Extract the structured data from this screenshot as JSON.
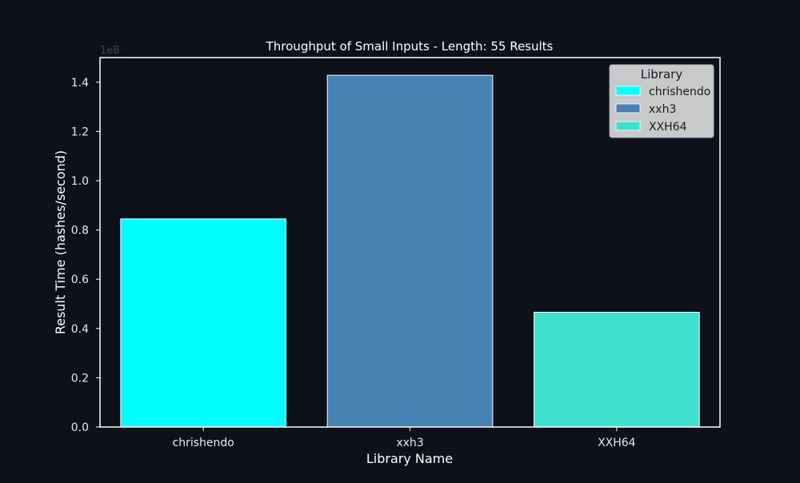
{
  "chart_data": {
    "type": "bar",
    "title": "Throughput of Small Inputs - Length: 55 Results",
    "xlabel": "Library Name",
    "ylabel": "Result Time (hashes/second)",
    "y_scale_label": "1e8",
    "categories": [
      "chrishendo",
      "xxh3",
      "XXH64"
    ],
    "values": [
      84500000,
      142800000,
      46600000
    ],
    "colors": [
      "#00ffff",
      "#4682b4",
      "#40e0d0"
    ],
    "ylim": [
      0,
      150000000
    ],
    "yticks": [
      0,
      20000000,
      40000000,
      60000000,
      80000000,
      100000000,
      120000000,
      140000000
    ],
    "ytick_labels": [
      "0.0",
      "0.2",
      "0.4",
      "0.6",
      "0.8",
      "1.0",
      "1.2",
      "1.4"
    ],
    "grid": false,
    "legend": {
      "title": "Library",
      "placement": "top-right",
      "entries": [
        "chrishendo",
        "xxh3",
        "XXH64"
      ]
    }
  }
}
